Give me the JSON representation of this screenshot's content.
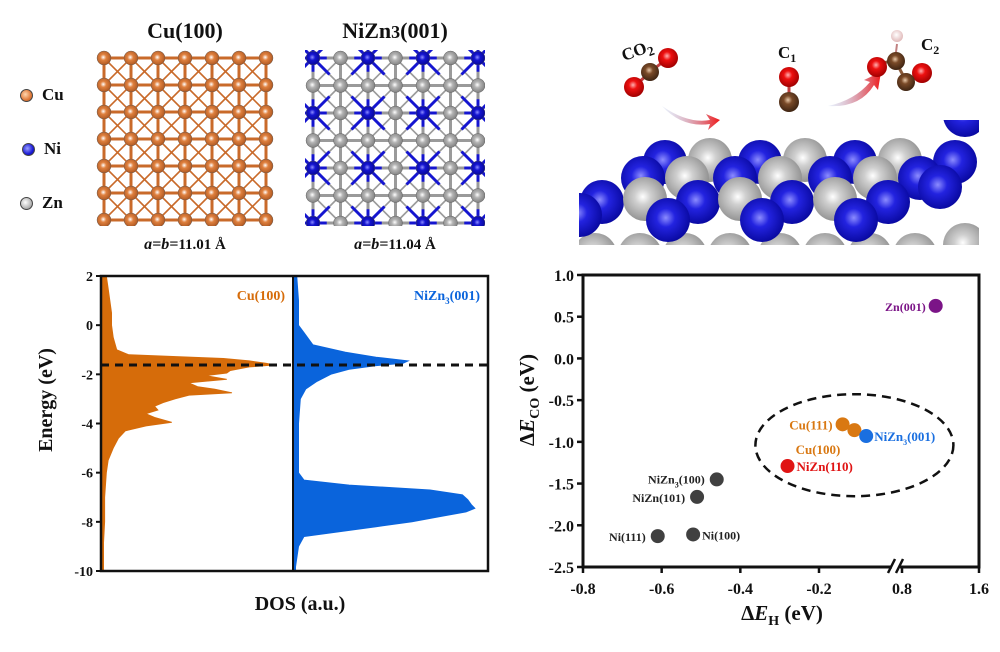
{
  "legend": {
    "items": [
      {
        "label": "Cu",
        "color": "#e07a3a"
      },
      {
        "label": "Ni",
        "color": "#1a1ad6"
      },
      {
        "label": "Zn",
        "color": "#b8b8b8"
      }
    ]
  },
  "structures": [
    {
      "title": "Cu(100)",
      "lattice": "a=b=11.01 Å",
      "lattice_var": "a=b=",
      "lattice_val": "11.01 Å",
      "grid": 7,
      "atom_color": "#e0813f",
      "bond_color": "#c96a2a"
    },
    {
      "title": "NiZn3(001)",
      "title_main": "NiZn",
      "title_sub": "3",
      "title_tail": "(001)",
      "lattice": "a=b=11.04 Å",
      "lattice_var": "a=b=",
      "lattice_val": "11.04 Å",
      "grid": 7,
      "atom_color": "#b4b4b4",
      "ni_color": "#1515d0",
      "bond_color": "#9a9a9a"
    }
  ],
  "reaction": {
    "labels": [
      "CO2",
      "C1",
      "C2"
    ],
    "co2": {
      "main": "CO",
      "sub": "2"
    },
    "c1": {
      "main": "C",
      "sub": "1"
    },
    "c2": {
      "main": "C",
      "sub": "2"
    }
  },
  "chart_data": [
    {
      "type": "area",
      "title": "",
      "xlabel": "DOS (a.u.)",
      "ylabel": "Energy (eV)",
      "ylim": [
        -10,
        2
      ],
      "yticks": [
        "2",
        "0",
        "-2",
        "-4",
        "-6",
        "-8",
        "-10"
      ],
      "ytick_values": [
        2,
        0,
        -2,
        -4,
        -6,
        -8,
        -10
      ],
      "d_band_center_line": -1.62,
      "series": [
        {
          "name": "Cu(100)",
          "color": "#d66c0a",
          "energy": [
            2,
            1.5,
            1.0,
            0.5,
            0.0,
            -0.5,
            -1.0,
            -1.2,
            -1.35,
            -1.45,
            -1.55,
            -1.62,
            -1.7,
            -1.85,
            -1.95,
            -2.05,
            -2.2,
            -2.35,
            -2.5,
            -2.6,
            -2.75,
            -2.85,
            -3.0,
            -3.15,
            -3.3,
            -3.45,
            -3.6,
            -3.75,
            -3.95,
            -4.1,
            -4.3,
            -4.6,
            -5.0,
            -5.5,
            -6.0,
            -7.0,
            -8.0,
            -9.3
          ],
          "dos": [
            0.02,
            0.03,
            0.04,
            0.05,
            0.05,
            0.06,
            0.08,
            0.15,
            0.7,
            0.85,
            0.95,
            1.0,
            0.85,
            0.74,
            0.72,
            0.6,
            0.72,
            0.5,
            0.55,
            0.65,
            0.75,
            0.5,
            0.42,
            0.35,
            0.3,
            0.32,
            0.25,
            0.3,
            0.4,
            0.25,
            0.13,
            0.09,
            0.06,
            0.03,
            0.02,
            0.01,
            0.01,
            0.0
          ]
        },
        {
          "name": "NiZn3(001)",
          "color": "#0a64dc",
          "energy": [
            2,
            1.0,
            0.0,
            -0.3,
            -0.8,
            -1.1,
            -1.3,
            -1.45,
            -1.55,
            -1.65,
            -1.8,
            -2.0,
            -2.3,
            -2.6,
            -3.0,
            -4.0,
            -5.0,
            -6.0,
            -6.3,
            -6.5,
            -6.7,
            -6.9,
            -7.1,
            -7.3,
            -7.45,
            -7.6,
            -7.8,
            -8.0,
            -8.2,
            -8.4,
            -8.6,
            -9.0,
            -10.0
          ],
          "dos": [
            0.01,
            0.02,
            0.02,
            0.05,
            0.1,
            0.28,
            0.45,
            0.63,
            0.6,
            0.45,
            0.3,
            0.2,
            0.12,
            0.06,
            0.03,
            0.02,
            0.02,
            0.02,
            0.05,
            0.3,
            0.75,
            0.93,
            0.96,
            0.98,
            1.0,
            0.95,
            0.8,
            0.65,
            0.45,
            0.25,
            0.05,
            0.02,
            0.0
          ]
        }
      ]
    },
    {
      "type": "scatter",
      "title": "",
      "xlabel": "ΔE_H (eV)",
      "xlabel_parts": {
        "delta": "Δ",
        "E": "E",
        "sub": "H",
        "unit": " (eV)"
      },
      "ylabel": "ΔE_CO (eV)",
      "ylabel_parts": {
        "delta": "Δ",
        "E": "E",
        "sub": "CO",
        "unit": " (eV)"
      },
      "ylim": [
        -2.5,
        1.0
      ],
      "yticks": [
        "1.0",
        "0.5",
        "0.0",
        "-0.5",
        "-1.0",
        "-1.5",
        "-2.0",
        "-2.5"
      ],
      "ytick_values": [
        1.0,
        0.5,
        0.0,
        -0.5,
        -1.0,
        -1.5,
        -2.0,
        -2.5
      ],
      "x_segments": [
        {
          "range": [
            -0.8,
            -0.2
          ],
          "ticks": [
            -0.8,
            -0.6,
            -0.4,
            -0.2
          ],
          "tick_labels": [
            "-0.8",
            "-0.6",
            "-0.4",
            "-0.2"
          ]
        },
        {
          "range": [
            0.8,
            1.6
          ],
          "ticks": [
            0.8,
            1.6
          ],
          "tick_labels": [
            "0.8",
            "1.6"
          ]
        }
      ],
      "axis_break": "between -0.2 and 0.8",
      "points": [
        {
          "label": "Zn(001)",
          "x": 1.15,
          "y": 0.63,
          "color": "#7b1487",
          "label_side": "left"
        },
        {
          "label": "Cu(111)",
          "x": -0.14,
          "y": -0.79,
          "color": "#d97812",
          "label_side": "left"
        },
        {
          "label": "Cu(100)",
          "x": -0.11,
          "y": -0.86,
          "color": "#d97812",
          "label_side": "below-left"
        },
        {
          "label": "NiZn3(001)",
          "label_main": "NiZn",
          "label_sub": "3",
          "label_tail": "(001)",
          "x": -0.08,
          "y": -0.93,
          "color": "#1a6fe0",
          "label_side": "right"
        },
        {
          "label": "NiZn(110)",
          "x": -0.28,
          "y": -1.29,
          "color": "#e01414",
          "label_side": "right"
        },
        {
          "label": "NiZn3(100)",
          "label_main": "NiZn",
          "label_sub": "3",
          "label_tail": "(100)",
          "x": -0.46,
          "y": -1.45,
          "color": "#404040",
          "label_side": "left"
        },
        {
          "label": "NiZn(101)",
          "x": -0.51,
          "y": -1.66,
          "color": "#404040",
          "label_side": "left"
        },
        {
          "label": "Ni(111)",
          "x": -0.61,
          "y": -2.13,
          "color": "#404040",
          "label_side": "left"
        },
        {
          "label": "Ni(100)",
          "x": -0.52,
          "y": -2.11,
          "color": "#404040",
          "label_side": "right"
        }
      ],
      "highlight_ellipse": {
        "center_x": -0.11,
        "center_y": -1.04,
        "encloses": [
          "Cu(111)",
          "Cu(100)",
          "NiZn3(001)",
          "NiZn(110)"
        ]
      }
    }
  ]
}
